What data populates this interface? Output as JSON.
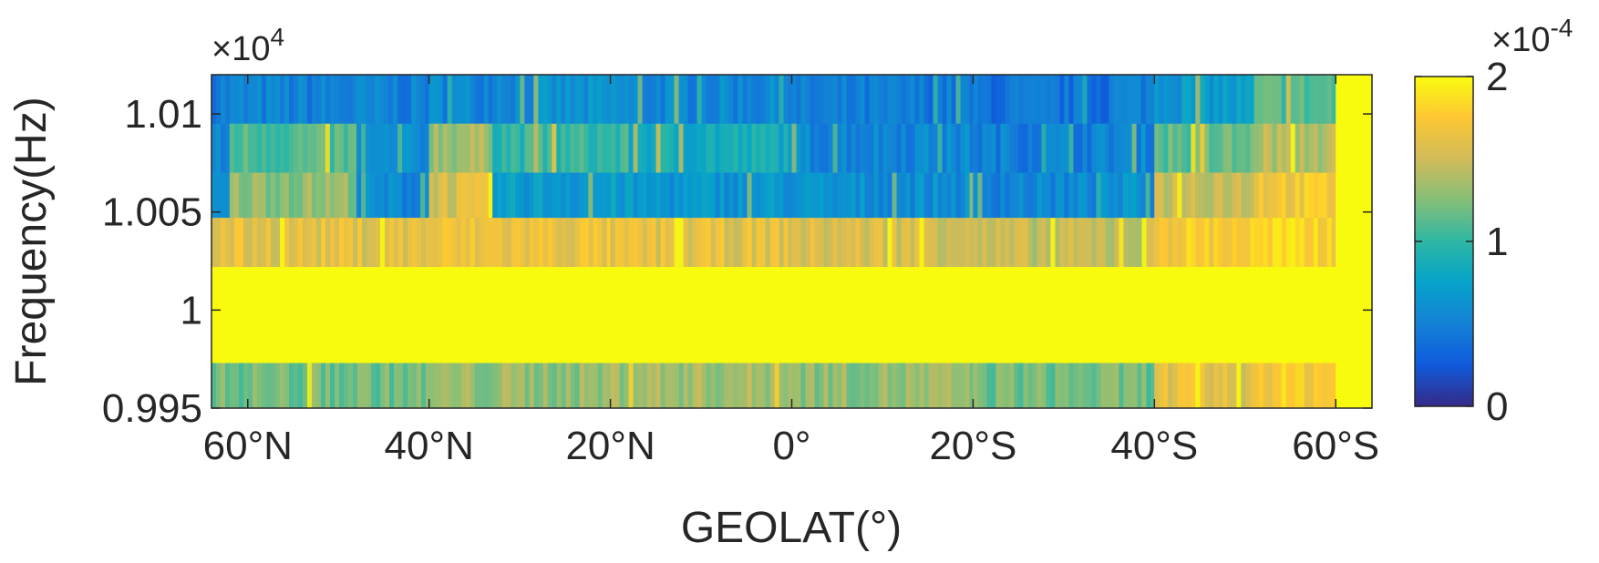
{
  "chart_data": {
    "type": "heatmap",
    "title": "",
    "xlabel": "GEOLAT(°)",
    "ylabel": "Frequency(Hz)",
    "x_direction": "north-to-south",
    "xlim": [
      64,
      -64
    ],
    "ylim": [
      0.995,
      1.012
    ],
    "y_multiplier_label": "×10",
    "y_multiplier_exp": "4",
    "x_ticks": [
      {
        "value": 60,
        "label": "60°N"
      },
      {
        "value": 40,
        "label": "40°N"
      },
      {
        "value": 20,
        "label": "20°N"
      },
      {
        "value": 0,
        "label": "0°"
      },
      {
        "value": -20,
        "label": "20°S"
      },
      {
        "value": -40,
        "label": "40°S"
      },
      {
        "value": -60,
        "label": "60°S"
      }
    ],
    "y_ticks": [
      {
        "value": 0.995,
        "label": "0.995"
      },
      {
        "value": 1.0,
        "label": "1"
      },
      {
        "value": 1.005,
        "label": "1.005"
      },
      {
        "value": 1.01,
        "label": "1.01"
      }
    ],
    "colorbar": {
      "colormap": "parula",
      "range": [
        0,
        2
      ],
      "multiplier_label": "×10",
      "multiplier_exp": "-4",
      "ticks": [
        {
          "value": 0,
          "label": "0"
        },
        {
          "value": 1,
          "label": "1"
        },
        {
          "value": 2,
          "label": "2"
        }
      ]
    },
    "frequency_bands": [
      {
        "y_range": [
          1.0095,
          1.012
        ],
        "segments": [
          {
            "from": 64,
            "to": 48,
            "value": 0.5
          },
          {
            "from": 48,
            "to": 40,
            "value": 0.5
          },
          {
            "from": 40,
            "to": 33,
            "value": 0.55
          },
          {
            "from": 33,
            "to": 18,
            "value": 0.6
          },
          {
            "from": 18,
            "to": 0,
            "value": 0.55
          },
          {
            "from": 0,
            "to": -20,
            "value": 0.45
          },
          {
            "from": -20,
            "to": -35,
            "value": 0.4
          },
          {
            "from": -35,
            "to": -40,
            "value": 0.5
          },
          {
            "from": -40,
            "to": -51,
            "value": 0.7
          },
          {
            "from": -51,
            "to": -60,
            "value": 1.1
          },
          {
            "from": -60,
            "to": -64,
            "value": 2.0
          }
        ]
      },
      {
        "y_range": [
          1.007,
          1.0095
        ],
        "segments": [
          {
            "from": 64,
            "to": 62,
            "value": 0.5
          },
          {
            "from": 62,
            "to": 48,
            "value": 1.1
          },
          {
            "from": 48,
            "to": 40,
            "value": 0.55
          },
          {
            "from": 40,
            "to": 33,
            "value": 1.35
          },
          {
            "from": 33,
            "to": 18,
            "value": 1.0
          },
          {
            "from": 18,
            "to": 0,
            "value": 0.85
          },
          {
            "from": 0,
            "to": -20,
            "value": 0.55
          },
          {
            "from": -20,
            "to": -35,
            "value": 0.5
          },
          {
            "from": -35,
            "to": -40,
            "value": 0.55
          },
          {
            "from": -40,
            "to": -51,
            "value": 1.15
          },
          {
            "from": -51,
            "to": -60,
            "value": 1.4
          },
          {
            "from": -60,
            "to": -64,
            "value": 2.0
          }
        ]
      },
      {
        "y_range": [
          1.0047,
          1.007
        ],
        "segments": [
          {
            "from": 64,
            "to": 62,
            "value": 0.55
          },
          {
            "from": 62,
            "to": 48,
            "value": 1.3
          },
          {
            "from": 48,
            "to": 40,
            "value": 0.55
          },
          {
            "from": 40,
            "to": 33,
            "value": 1.55
          },
          {
            "from": 33,
            "to": 18,
            "value": 0.7
          },
          {
            "from": 18,
            "to": 0,
            "value": 0.65
          },
          {
            "from": 0,
            "to": -20,
            "value": 0.6
          },
          {
            "from": -20,
            "to": -35,
            "value": 0.55
          },
          {
            "from": -35,
            "to": -40,
            "value": 0.6
          },
          {
            "from": -40,
            "to": -51,
            "value": 1.5
          },
          {
            "from": -51,
            "to": -60,
            "value": 1.7
          },
          {
            "from": -60,
            "to": -64,
            "value": 2.0
          }
        ]
      },
      {
        "y_range": [
          1.0022,
          1.0047
        ],
        "segments": [
          {
            "from": 64,
            "to": 40,
            "value": 1.6
          },
          {
            "from": 40,
            "to": 20,
            "value": 1.65
          },
          {
            "from": 20,
            "to": 0,
            "value": 1.6
          },
          {
            "from": 0,
            "to": -20,
            "value": 1.55
          },
          {
            "from": -20,
            "to": -40,
            "value": 1.45
          },
          {
            "from": -40,
            "to": -51,
            "value": 1.75
          },
          {
            "from": -51,
            "to": -60,
            "value": 1.8
          },
          {
            "from": -60,
            "to": -64,
            "value": 2.0
          }
        ]
      },
      {
        "y_range": [
          0.9973,
          1.0022
        ],
        "segments": [
          {
            "from": 64,
            "to": -64,
            "value": 2.0
          }
        ]
      },
      {
        "y_range": [
          0.995,
          0.9973
        ],
        "segments": [
          {
            "from": 64,
            "to": 40,
            "value": 1.2
          },
          {
            "from": 40,
            "to": 20,
            "value": 1.3
          },
          {
            "from": 20,
            "to": 0,
            "value": 1.35
          },
          {
            "from": 0,
            "to": -20,
            "value": 1.3
          },
          {
            "from": -20,
            "to": -40,
            "value": 1.2
          },
          {
            "from": -40,
            "to": -51,
            "value": 1.6
          },
          {
            "from": -51,
            "to": -60,
            "value": 1.75
          },
          {
            "from": -60,
            "to": -64,
            "value": 2.0
          }
        ]
      }
    ]
  }
}
